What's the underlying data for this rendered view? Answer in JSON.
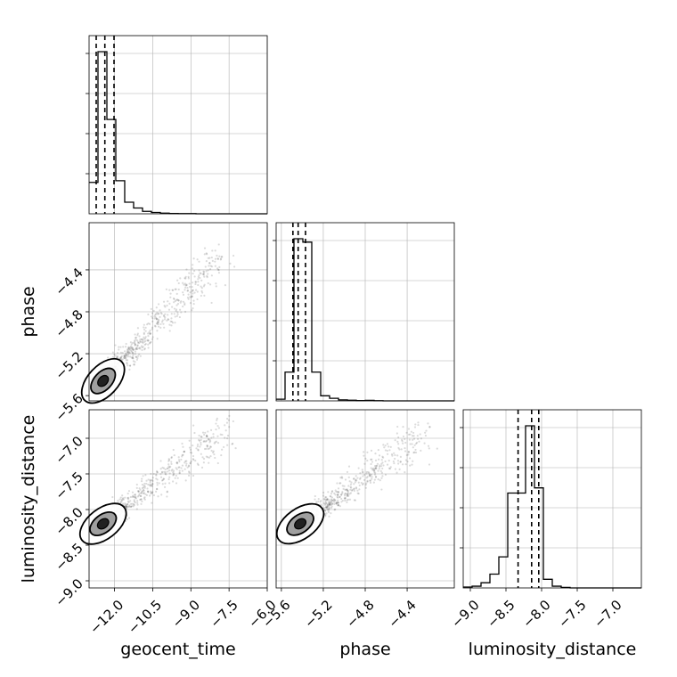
{
  "chart_data": {
    "type": "corner",
    "parameters": [
      "geocent_time",
      "phase",
      "luminosity_distance"
    ],
    "axis_labels": {
      "x": [
        "geocent_time",
        "phase",
        "luminosity_distance"
      ],
      "y": [
        "",
        "phase",
        "luminosity_distance"
      ]
    },
    "ranges": {
      "geocent_time": [
        -13.0,
        -6.0
      ],
      "phase": [
        -5.65,
        -3.95
      ],
      "luminosity_distance": [
        -9.1,
        -6.6
      ]
    },
    "ticks": {
      "geocent_time": [
        -12.0,
        -10.5,
        -9.0,
        -7.5,
        -6.0
      ],
      "phase": [
        -5.6,
        -5.2,
        -4.8,
        -4.4
      ],
      "luminosity_distance": [
        -9.0,
        -8.5,
        -8.0,
        -7.5,
        -7.0
      ]
    },
    "tick_labels": {
      "geocent_time": [
        "−12.0",
        "−10.5",
        "−9.0",
        "−7.5",
        "−6.0"
      ],
      "phase": [
        "−5.6",
        "−5.2",
        "−4.8",
        "−4.4"
      ],
      "luminosity_distance": [
        "−9.0",
        "−8.5",
        "−8.0",
        "−7.5",
        "−7.0"
      ]
    },
    "quantiles": {
      "geocent_time": [
        -12.72,
        -12.38,
        -12.02
      ],
      "phase": [
        -5.49,
        -5.44,
        -5.37
      ],
      "luminosity_distance": [
        -8.33,
        -8.14,
        -8.04
      ]
    },
    "histograms": {
      "geocent_time": {
        "edges": [
          -13.0,
          -12.65,
          -12.3,
          -11.95,
          -11.6,
          -11.25,
          -10.9,
          -10.55,
          -10.2,
          -9.85,
          -9.5,
          -9.15,
          -8.8,
          -8.45,
          -8.1,
          -7.75,
          -7.4,
          -7.05,
          -6.7,
          -6.35,
          -6.0
        ],
        "counts": [
          0.19,
          0.98,
          0.57,
          0.2,
          0.07,
          0.035,
          0.015,
          0.008,
          0.004,
          0.002,
          0.001,
          0.001,
          0.0,
          0.0,
          0.0,
          0.0,
          0.0,
          0.0,
          0.0,
          0.0
        ]
      },
      "phase": {
        "edges": [
          -5.65,
          -5.565,
          -5.48,
          -5.395,
          -5.31,
          -5.225,
          -5.14,
          -5.055,
          -4.97,
          -4.885,
          -4.8,
          -4.715,
          -4.63,
          -4.545,
          -4.46,
          -4.375,
          -4.29,
          -4.205,
          -4.12,
          -4.035,
          -3.95
        ],
        "counts": [
          0.01,
          0.17,
          0.96,
          0.94,
          0.17,
          0.03,
          0.015,
          0.006,
          0.004,
          0.002,
          0.003,
          0.001,
          0.0,
          0.0,
          0.0,
          0.0,
          0.0,
          0.0,
          0.0,
          0.0
        ]
      },
      "luminosity_distance": {
        "edges": [
          -9.1,
          -8.975,
          -8.85,
          -8.725,
          -8.6,
          -8.475,
          -8.35,
          -8.225,
          -8.1,
          -7.975,
          -7.85,
          -7.725,
          -7.6,
          -7.475,
          -7.35,
          -7.225,
          -7.1,
          -6.975,
          -6.85,
          -6.725,
          -6.6
        ],
        "counts": [
          0.005,
          0.01,
          0.03,
          0.08,
          0.18,
          0.55,
          0.55,
          0.94,
          0.58,
          0.05,
          0.01,
          0.003,
          0.0,
          0.0,
          0.0,
          0.0,
          0.0,
          0.0,
          0.0,
          0.0
        ]
      }
    },
    "posterior_2d": [
      {
        "x": "geocent_time",
        "y": "phase",
        "center": [
          -12.45,
          -5.46
        ],
        "correlation_slope": 0.25,
        "max_extent": [
          -7.8,
          -4.25
        ]
      },
      {
        "x": "geocent_time",
        "y": "luminosity_distance",
        "center": [
          -12.45,
          -8.2
        ],
        "correlation_slope": 0.24,
        "max_extent": [
          -7.6,
          -6.85
        ]
      },
      {
        "x": "phase",
        "y": "luminosity_distance",
        "center": [
          -5.42,
          -8.2
        ],
        "correlation_slope": 1.15,
        "max_extent": [
          -4.2,
          -6.9
        ]
      }
    ],
    "grid": true,
    "colors": {
      "line": "#000000",
      "grid": "#b0b0b0",
      "sample": "#000000"
    }
  }
}
